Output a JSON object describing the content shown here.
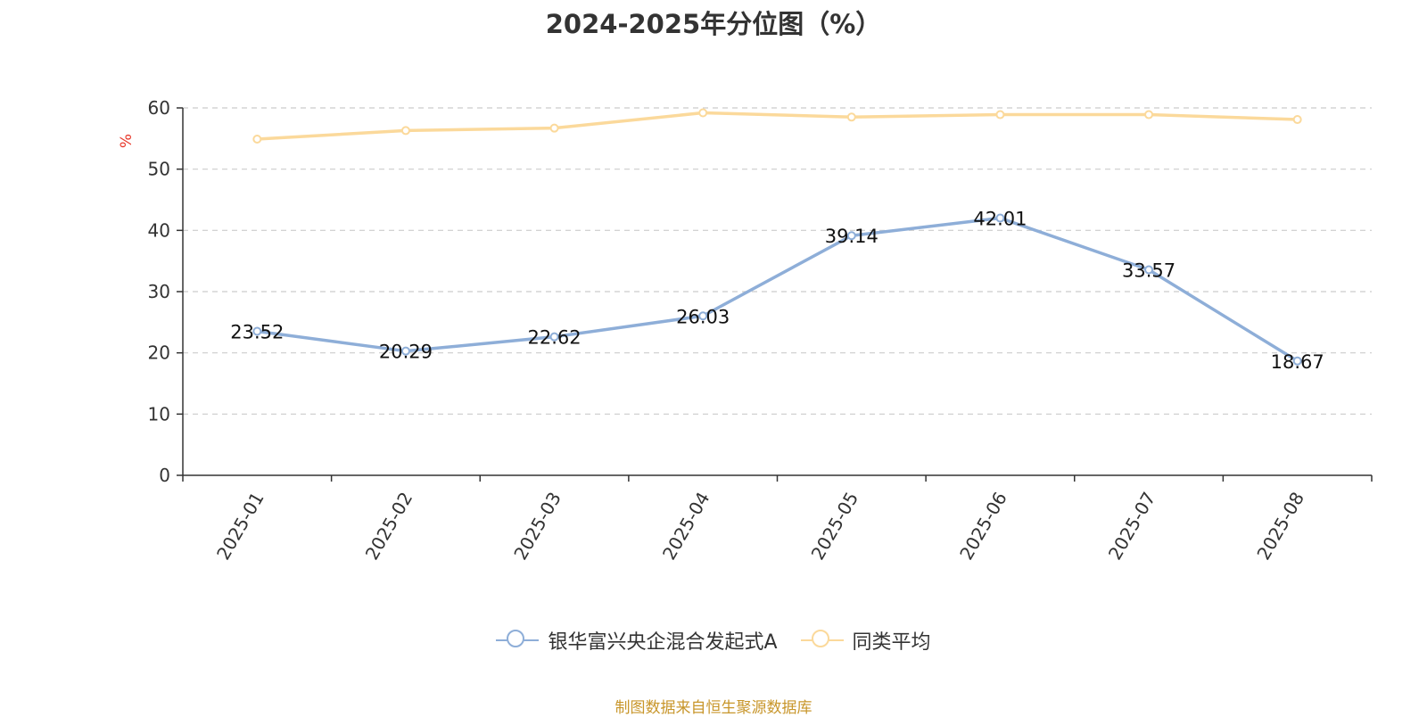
{
  "chart_data": {
    "type": "line",
    "title": "2024-2025年分位图（%）",
    "ylabel": "%",
    "ylim": [
      0,
      60
    ],
    "yticks": [
      "0",
      "10",
      "20",
      "30",
      "40",
      "50",
      "60"
    ],
    "categories": [
      "2025-01",
      "2025-02",
      "2025-03",
      "2025-04",
      "2025-05",
      "2025-06",
      "2025-07",
      "2025-08"
    ],
    "grid": true,
    "legend_position": "bottom",
    "series": [
      {
        "name": "银华富兴央企混合发起式A",
        "color": "#8eaed8",
        "values": [
          23.52,
          20.29,
          22.62,
          26.03,
          39.14,
          42.01,
          33.57,
          18.67
        ],
        "labels": [
          "23.52",
          "20.29",
          "22.62",
          "26.03",
          "39.14",
          "42.01",
          "33.57",
          "18.67"
        ]
      },
      {
        "name": "同类平均",
        "color": "#fbd99b",
        "values": [
          54.9,
          56.3,
          56.7,
          59.2,
          58.5,
          58.9,
          58.9,
          58.1
        ]
      }
    ]
  },
  "footer": {
    "source": "制图数据来自恒生聚源数据库"
  }
}
